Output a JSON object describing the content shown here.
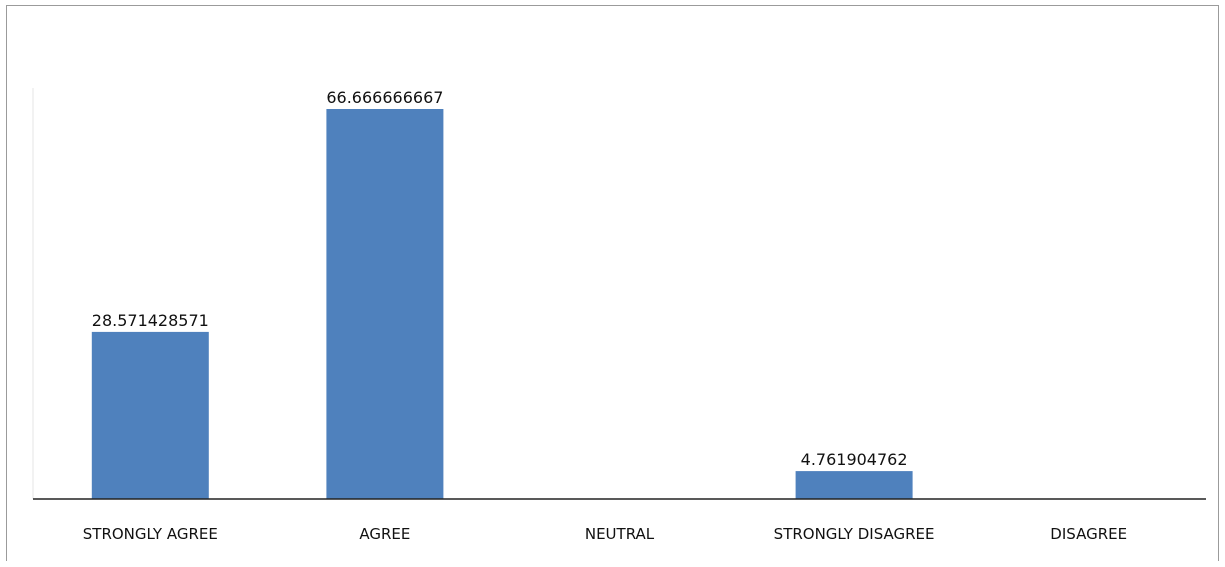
{
  "chart_data": {
    "type": "bar",
    "title": "",
    "xlabel": "",
    "ylabel": "",
    "categories": [
      "STRONGLY AGREE",
      "AGREE",
      "NEUTRAL",
      "STRONGLY DISAGREE",
      "DISAGREE"
    ],
    "values": [
      28.571428571,
      66.666666667,
      0,
      4.761904762,
      0
    ],
    "data_labels": [
      "28.571428571",
      "66.666666667",
      "",
      "4.761904762",
      ""
    ],
    "ylim": [
      0,
      70
    ],
    "grid": false,
    "legend": "none",
    "colors": {
      "bar": "#4f81bd"
    }
  }
}
